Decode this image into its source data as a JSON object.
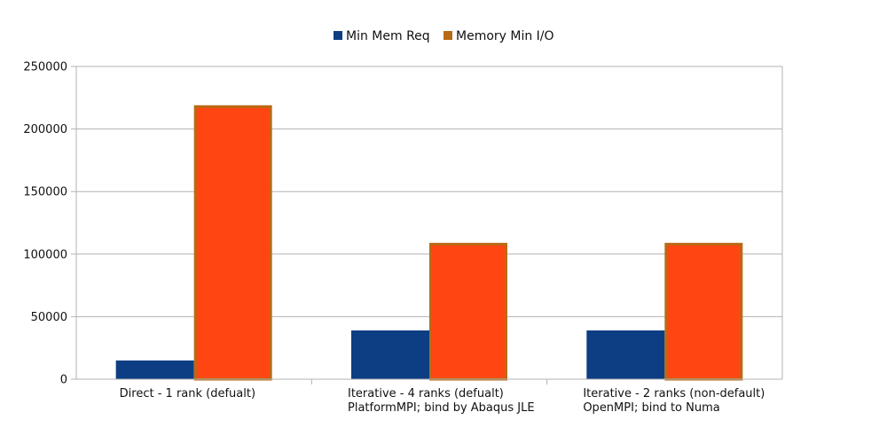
{
  "chart_data": {
    "type": "bar",
    "categories": [
      [
        "Direct - 1 rank (defualt)"
      ],
      [
        "Iterative - 4 ranks (defualt)",
        "PlatformMPI; bind by Abaqus JLE"
      ],
      [
        "Iterative - 2 ranks (non-default)",
        "OpenMPI; bind to Numa"
      ]
    ],
    "series": [
      {
        "name": "Min Mem Req",
        "color": "#0d3e84",
        "values": [
          15000,
          39000,
          39000
        ]
      },
      {
        "name": "Memory Min I/O",
        "color": "#ff4612",
        "border_color": "#b96a16",
        "values": [
          219000,
          109000,
          109000
        ]
      }
    ],
    "ylim": [
      0,
      250000
    ],
    "yticks": [
      0,
      50000,
      100000,
      150000,
      200000,
      250000
    ],
    "ytick_labels": [
      "0",
      "50000",
      "100000",
      "150000",
      "200000",
      "250000"
    ],
    "grid": true,
    "legend_position": "top-center",
    "xlabel": "",
    "ylabel": "",
    "title": ""
  }
}
